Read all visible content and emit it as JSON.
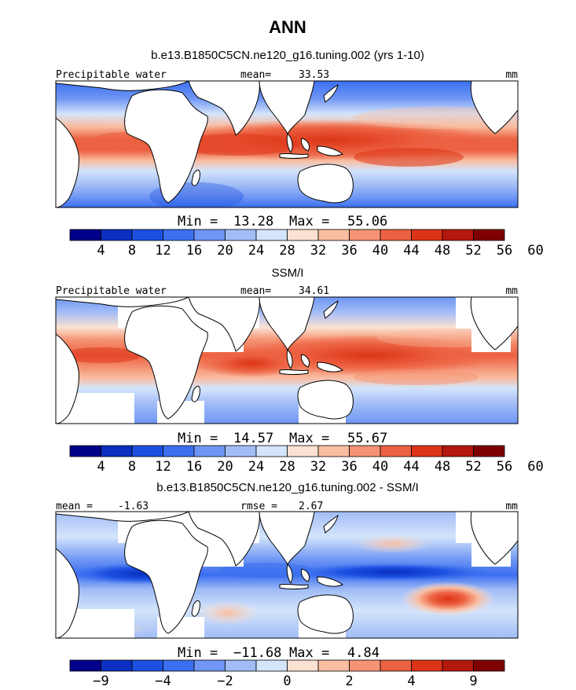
{
  "figure": {
    "title": "ANN",
    "colors": [
      "#00008b",
      "#0a2fc0",
      "#1c50e0",
      "#3b6ff0",
      "#6f96f4",
      "#a2bdf6",
      "#d3e4fb",
      "#fbe1d2",
      "#f9bda1",
      "#f59374",
      "#ec6141",
      "#dc3416",
      "#b3190c",
      "#7f0000"
    ]
  },
  "chart_data": [
    {
      "type": "heatmap",
      "title": "b.e13.B1850C5CN.ne120_g16.tuning.002 (yrs 1-10)",
      "variable_label": "Precipitable water",
      "stat_label": "mean=",
      "stat_value": "33.53",
      "units": "mm",
      "min_label": "Min =",
      "min_value": "13.28",
      "max_label": "Max =",
      "max_value": "55.06",
      "colorbar_levels": [
        "4",
        "8",
        "12",
        "16",
        "20",
        "24",
        "28",
        "32",
        "36",
        "40",
        "44",
        "48",
        "52",
        "56",
        "60"
      ]
    },
    {
      "type": "heatmap",
      "title": "SSM/I",
      "variable_label": "Precipitable water",
      "stat_label": "mean=",
      "stat_value": "34.61",
      "units": "mm",
      "min_label": "Min =",
      "min_value": "14.57",
      "max_label": "Max =",
      "max_value": "55.67",
      "colorbar_levels": [
        "4",
        "8",
        "12",
        "16",
        "20",
        "24",
        "28",
        "32",
        "36",
        "40",
        "44",
        "48",
        "52",
        "56",
        "60"
      ]
    },
    {
      "type": "heatmap",
      "title": "b.e13.B1850C5CN.ne120_g16.tuning.002 - SSM/I",
      "variable_label": "",
      "stat_label": "mean =",
      "stat_value": "-1.63",
      "stat2_label": "rmse =",
      "stat2_value": "2.67",
      "units": "mm",
      "min_label": "Min =",
      "min_value": "−11.68",
      "max_label": "Max =",
      "max_value": "4.84",
      "colorbar_levels": [
        "−9",
        "",
        "−4",
        "",
        "−2",
        "",
        "0",
        "",
        "2",
        "",
        "4",
        "",
        "9"
      ]
    }
  ]
}
